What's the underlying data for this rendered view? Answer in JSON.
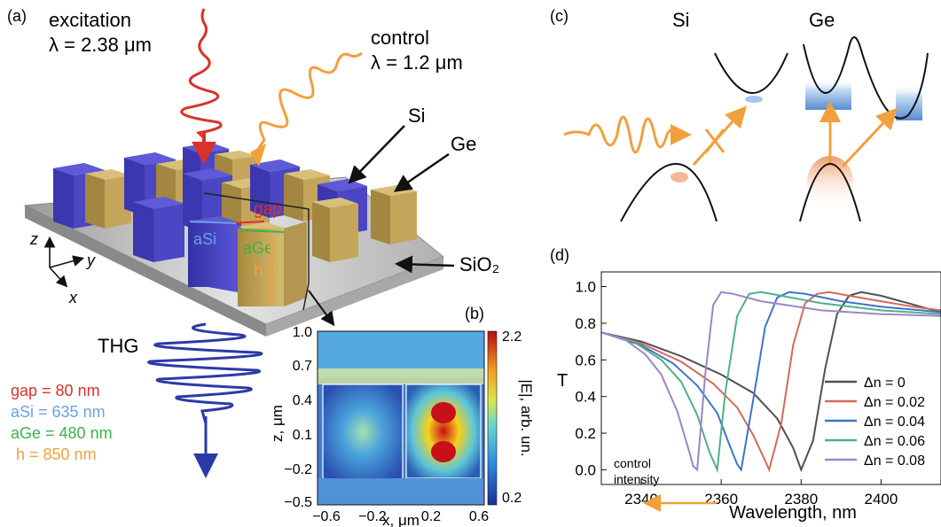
{
  "panels": {
    "a": {
      "label": "(a)",
      "excitation_title": "excitation",
      "excitation_wl": "λ = 2.38 μm",
      "control_title": "control",
      "control_wl": "λ = 1.2 μm",
      "si_label": "Si",
      "ge_label": "Ge",
      "sio2_label": "SiO₂",
      "gap_label": "gap",
      "a_si_label": "aSi",
      "a_ge_label": "aGe",
      "h_label": "h",
      "thg_label": "THG",
      "axis_z": "z",
      "axis_y": "y",
      "axis_x": "x",
      "params": {
        "gap": "gap = 80 nm",
        "a_si": "aSi = 635 nm",
        "a_ge": "aGe = 480 nm",
        "h": "h = 850 nm"
      },
      "colors": {
        "si": "#4b45c8",
        "ge": "#c7a85a",
        "excitation": "#d8322a",
        "control": "#f0a03c",
        "thg": "#2c3aa6"
      }
    },
    "b": {
      "label": "(b)",
      "ylabel": "z, μm",
      "xlabel": "x, μm",
      "yticks": [
        "1.0",
        "0.7",
        "0.4",
        "0.1",
        "−0.2",
        "−0.5"
      ],
      "xticks": [
        "−0.6",
        "−0.2",
        "0.2",
        "0.6"
      ],
      "colorbar_label": "|E|, arb. un.",
      "colorbar_max": "2.2",
      "colorbar_min": "0.2"
    },
    "c": {
      "label": "(c)",
      "si_title": "Si",
      "ge_title": "Ge"
    }
  },
  "chart_data": {
    "type": "line",
    "label": "(d)",
    "xlabel": "Wavelength, nm",
    "ylabel": "T",
    "xlim": [
      2330,
      2415
    ],
    "ylim": [
      -0.08,
      1.08
    ],
    "xticks": [
      2340,
      2360,
      2380,
      2400
    ],
    "yticks": [
      0.0,
      0.2,
      0.4,
      0.6,
      0.8,
      1.0
    ],
    "annotation": "control intensity",
    "series": [
      {
        "name": "Δn = 0",
        "color": "#505050",
        "points": [
          [
            2330,
            0.75
          ],
          [
            2340,
            0.7
          ],
          [
            2350,
            0.62
          ],
          [
            2360,
            0.52
          ],
          [
            2368,
            0.42
          ],
          [
            2374,
            0.28
          ],
          [
            2378,
            0.12
          ],
          [
            2380,
            0.0
          ],
          [
            2383,
            0.16
          ],
          [
            2386,
            0.55
          ],
          [
            2389,
            0.85
          ],
          [
            2392,
            0.95
          ],
          [
            2395,
            0.97
          ],
          [
            2400,
            0.95
          ],
          [
            2405,
            0.92
          ],
          [
            2410,
            0.89
          ],
          [
            2415,
            0.86
          ]
        ]
      },
      {
        "name": "Δn = 0.02",
        "color": "#d46a5a",
        "points": [
          [
            2330,
            0.75
          ],
          [
            2340,
            0.69
          ],
          [
            2350,
            0.59
          ],
          [
            2358,
            0.47
          ],
          [
            2364,
            0.34
          ],
          [
            2368,
            0.19
          ],
          [
            2371,
            0.05
          ],
          [
            2372,
            0.0
          ],
          [
            2375,
            0.25
          ],
          [
            2378,
            0.68
          ],
          [
            2381,
            0.91
          ],
          [
            2384,
            0.96
          ],
          [
            2387,
            0.97
          ],
          [
            2392,
            0.95
          ],
          [
            2400,
            0.92
          ],
          [
            2408,
            0.89
          ],
          [
            2415,
            0.87
          ]
        ]
      },
      {
        "name": "Δn = 0.04",
        "color": "#3d74c9",
        "points": [
          [
            2330,
            0.75
          ],
          [
            2340,
            0.68
          ],
          [
            2348,
            0.58
          ],
          [
            2354,
            0.46
          ],
          [
            2359,
            0.31
          ],
          [
            2362,
            0.14
          ],
          [
            2364,
            0.03
          ],
          [
            2365,
            0.0
          ],
          [
            2368,
            0.38
          ],
          [
            2371,
            0.78
          ],
          [
            2374,
            0.94
          ],
          [
            2377,
            0.97
          ],
          [
            2381,
            0.96
          ],
          [
            2390,
            0.92
          ],
          [
            2400,
            0.89
          ],
          [
            2410,
            0.87
          ],
          [
            2415,
            0.86
          ]
        ]
      },
      {
        "name": "Δn = 0.06",
        "color": "#4fb08a",
        "points": [
          [
            2330,
            0.75
          ],
          [
            2338,
            0.7
          ],
          [
            2345,
            0.6
          ],
          [
            2350,
            0.48
          ],
          [
            2354,
            0.3
          ],
          [
            2357,
            0.1
          ],
          [
            2359,
            0.0
          ],
          [
            2361,
            0.42
          ],
          [
            2364,
            0.84
          ],
          [
            2367,
            0.96
          ],
          [
            2370,
            0.97
          ],
          [
            2375,
            0.95
          ],
          [
            2385,
            0.91
          ],
          [
            2400,
            0.87
          ],
          [
            2415,
            0.85
          ]
        ]
      },
      {
        "name": "Δn = 0.08",
        "color": "#9a86c8",
        "points": [
          [
            2330,
            0.75
          ],
          [
            2336,
            0.71
          ],
          [
            2341,
            0.63
          ],
          [
            2345,
            0.52
          ],
          [
            2349,
            0.32
          ],
          [
            2352,
            0.1
          ],
          [
            2353,
            0.02
          ],
          [
            2354,
            0.0
          ],
          [
            2356,
            0.52
          ],
          [
            2358,
            0.9
          ],
          [
            2360,
            0.97
          ],
          [
            2363,
            0.96
          ],
          [
            2370,
            0.92
          ],
          [
            2385,
            0.87
          ],
          [
            2400,
            0.85
          ],
          [
            2415,
            0.84
          ]
        ]
      }
    ]
  }
}
